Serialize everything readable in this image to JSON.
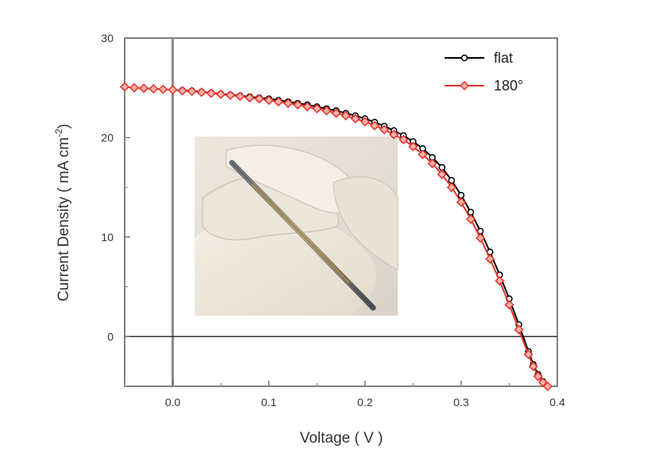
{
  "chart_data": {
    "type": "line",
    "xlabel": "Voltage ( V )",
    "ylabel": "Current Density ( mA cm",
    "ylabel_sup": "-2",
    "xlim": [
      -0.05,
      0.4
    ],
    "ylim": [
      -5,
      30
    ],
    "xticks": [
      0.0,
      0.1,
      0.2,
      0.3,
      0.4
    ],
    "xtick_labels": [
      "0.0",
      "0.1",
      "0.2",
      "0.3",
      "0.4"
    ],
    "yticks": [
      0,
      10,
      20,
      30
    ],
    "ytick_labels": [
      "0",
      "10",
      "20",
      "30"
    ],
    "reference_lines": {
      "x": 0,
      "y": 0
    },
    "grid": false,
    "legend_position": "top-right",
    "x": [
      -0.05,
      -0.04,
      -0.03,
      -0.02,
      -0.01,
      0.0,
      0.01,
      0.02,
      0.03,
      0.04,
      0.05,
      0.06,
      0.07,
      0.08,
      0.09,
      0.1,
      0.11,
      0.12,
      0.13,
      0.14,
      0.15,
      0.16,
      0.17,
      0.18,
      0.19,
      0.2,
      0.21,
      0.22,
      0.23,
      0.24,
      0.25,
      0.26,
      0.27,
      0.28,
      0.29,
      0.3,
      0.31,
      0.32,
      0.33,
      0.34,
      0.35,
      0.36,
      0.37,
      0.375,
      0.38,
      0.385,
      0.39
    ],
    "series": [
      {
        "name": "flat",
        "color": "#000000",
        "marker": "circle",
        "values": [
          25.1,
          25.0,
          24.95,
          24.9,
          24.85,
          24.8,
          24.75,
          24.7,
          24.6,
          24.5,
          24.4,
          24.3,
          24.2,
          24.1,
          24.0,
          23.9,
          23.75,
          23.6,
          23.45,
          23.3,
          23.1,
          22.9,
          22.7,
          22.45,
          22.2,
          21.9,
          21.55,
          21.15,
          20.7,
          20.2,
          19.6,
          18.9,
          18.0,
          17.0,
          15.7,
          14.2,
          12.5,
          10.6,
          8.5,
          6.2,
          3.8,
          1.2,
          -1.5,
          -2.8,
          -3.8,
          -4.5,
          -5.0
        ]
      },
      {
        "name": "180°",
        "color": "#e8322a",
        "marker": "diamond",
        "values": [
          25.1,
          25.0,
          24.95,
          24.9,
          24.85,
          24.8,
          24.7,
          24.65,
          24.55,
          24.45,
          24.35,
          24.25,
          24.15,
          24.0,
          23.9,
          23.75,
          23.6,
          23.45,
          23.3,
          23.1,
          22.9,
          22.7,
          22.45,
          22.2,
          21.9,
          21.6,
          21.2,
          20.8,
          20.3,
          19.8,
          19.1,
          18.3,
          17.4,
          16.3,
          15.0,
          13.5,
          11.8,
          9.9,
          7.8,
          5.6,
          3.2,
          0.7,
          -1.8,
          -3.0,
          -4.0,
          -4.6,
          -5.0
        ]
      }
    ]
  },
  "inset": {
    "icon": "photo-of-fingers-bending-fiber-solar-cell"
  }
}
